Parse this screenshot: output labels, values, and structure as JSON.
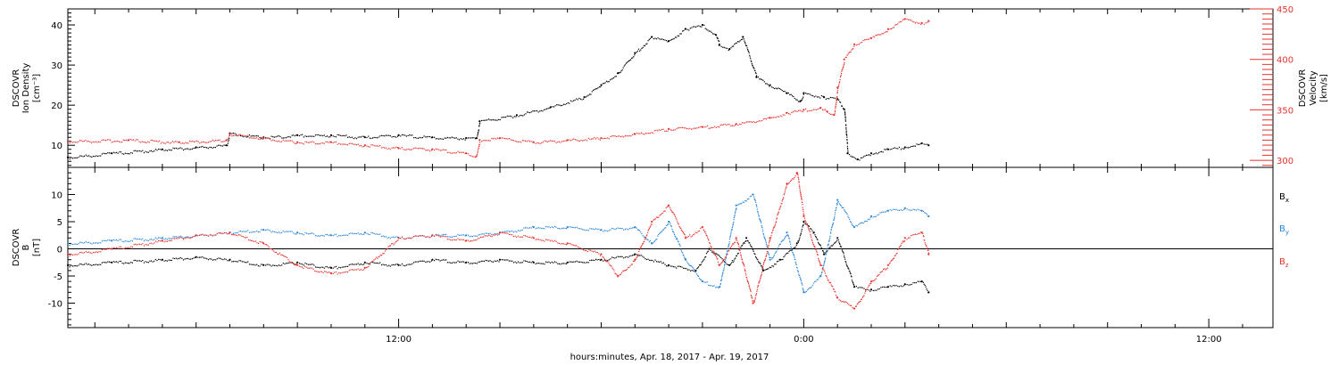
{
  "footer": {
    "xlabel": "hours:minutes, Apr. 18, 2017 - Apr. 19, 2017"
  },
  "chart_data": [
    {
      "type": "scatter",
      "panel": "top",
      "title": "",
      "xlabel": "hours:minutes, Apr. 18, 2017 - Apr. 19, 2017",
      "x_unit": "hours from 2017-04-18 00:00",
      "xlim": [
        2.2,
        37.9
      ],
      "x_ticks": [
        12,
        24,
        36
      ],
      "x_tick_labels": [
        "12:00",
        "0:00",
        "12:00"
      ],
      "y_left": {
        "label": [
          "DSCOVR",
          "Ion Density",
          "[cm⁻³]"
        ],
        "ylim": [
          4.5,
          44
        ],
        "ticks": [
          10,
          20,
          30,
          40
        ],
        "color": "#000000"
      },
      "y_right": {
        "label": [
          "DSCOVR",
          "Velocity",
          "[km/s]"
        ],
        "ylim": [
          293,
          450
        ],
        "ticks": [
          300,
          350,
          400,
          450
        ],
        "color": "#e8322d"
      },
      "series": [
        {
          "name": "Ion Density",
          "axis": "left",
          "color": "#000000",
          "x": [
            2.2,
            3.5,
            5.0,
            6.0,
            6.9,
            7.0,
            8.0,
            9.0,
            10.0,
            11.0,
            12.0,
            13.0,
            14.0,
            14.3,
            14.4,
            15.5,
            16.5,
            17.5,
            18.0,
            18.5,
            19.0,
            19.5,
            20.0,
            20.5,
            21.0,
            21.4,
            21.5,
            21.8,
            22.2,
            22.6,
            23.0,
            23.5,
            23.9,
            24.0,
            24.6,
            25.0,
            25.2,
            25.3,
            25.6,
            26.0,
            26.5,
            27.0,
            27.5,
            27.7
          ],
          "y": [
            7.0,
            8.0,
            9.0,
            9.5,
            10.0,
            13.0,
            12.0,
            12.5,
            12.5,
            12.0,
            12.5,
            12.0,
            11.8,
            11.8,
            16.0,
            17.5,
            19.5,
            22.0,
            25.0,
            28.0,
            33.0,
            37.0,
            36.0,
            39.0,
            40.0,
            37.5,
            35.0,
            34.0,
            37.0,
            27.0,
            25.0,
            23.0,
            21.0,
            23.0,
            22.0,
            21.5,
            19.0,
            8.0,
            6.5,
            8.0,
            9.0,
            9.5,
            10.5,
            10.0
          ]
        },
        {
          "name": "Velocity",
          "axis": "right",
          "color": "#e8322d",
          "x": [
            2.2,
            4.0,
            5.5,
            6.9,
            7.0,
            8.0,
            9.0,
            10.0,
            11.0,
            12.0,
            13.0,
            14.0,
            14.3,
            14.4,
            15.0,
            16.0,
            17.0,
            18.0,
            19.0,
            20.0,
            21.0,
            22.0,
            23.0,
            23.5,
            24.0,
            24.5,
            24.7,
            24.9,
            25.0,
            25.2,
            25.5,
            26.0,
            26.5,
            27.0,
            27.5,
            27.7
          ],
          "y": [
            319,
            320,
            318,
            320,
            326,
            322,
            318,
            318,
            315,
            312,
            311,
            307,
            304,
            320,
            322,
            318,
            320,
            322,
            326,
            331,
            333,
            336,
            342,
            347,
            350,
            352,
            348,
            345,
            372,
            400,
            415,
            421,
            430,
            440,
            436,
            438
          ]
        }
      ]
    },
    {
      "type": "scatter",
      "panel": "bottom",
      "title": "",
      "xlabel": "hours:minutes, Apr. 18, 2017 - Apr. 19, 2017",
      "x_unit": "hours from 2017-04-18 00:00",
      "xlim": [
        2.2,
        37.9
      ],
      "x_ticks": [
        12,
        24,
        36
      ],
      "x_tick_labels": [
        "12:00",
        "0:00",
        "12:00"
      ],
      "y_left": {
        "label": [
          "DSCOVR",
          "B",
          "[nT]"
        ],
        "ylim": [
          -14.5,
          15
        ],
        "ticks": [
          -10,
          -5,
          0,
          5,
          10
        ],
        "color": "#000000"
      },
      "zero_line": true,
      "legend": {
        "placement": "right",
        "entries": [
          {
            "name": "B",
            "sub": "x",
            "color": "#000000"
          },
          {
            "name": "B",
            "sub": "y",
            "color": "#2a86d8"
          },
          {
            "name": "B",
            "sub": "z",
            "color": "#e8322d"
          }
        ]
      },
      "series": [
        {
          "name": "Bx",
          "color": "#000000",
          "x": [
            2.2,
            3.5,
            5.0,
            6.0,
            7.0,
            8.0,
            9.0,
            10.0,
            11.0,
            12.0,
            13.0,
            14.0,
            15.0,
            16.0,
            17.0,
            18.0,
            19.0,
            20.0,
            20.8,
            21.2,
            21.8,
            22.3,
            22.8,
            23.3,
            23.8,
            24.0,
            24.3,
            24.6,
            25.0,
            25.5,
            26.0,
            26.5,
            27.0,
            27.5,
            27.7
          ],
          "y": [
            -3.0,
            -2.5,
            -2.0,
            -1.5,
            -2.0,
            -3.0,
            -2.5,
            -3.5,
            -2.5,
            -3.0,
            -2.0,
            -2.5,
            -2.0,
            -2.5,
            -2.5,
            -2.0,
            -1.0,
            -3.0,
            -4.0,
            0.0,
            -3.0,
            2.0,
            -4.0,
            -2.0,
            1.0,
            5.0,
            3.0,
            -1.0,
            2.0,
            -7.0,
            -7.5,
            -7.0,
            -6.5,
            -6.0,
            -8.0
          ]
        },
        {
          "name": "By",
          "color": "#2a86d8",
          "x": [
            2.2,
            3.5,
            5.0,
            6.0,
            7.0,
            8.0,
            9.0,
            10.0,
            11.0,
            12.0,
            13.0,
            14.0,
            15.0,
            16.0,
            17.0,
            18.0,
            19.0,
            19.5,
            20.0,
            20.5,
            21.0,
            21.5,
            22.0,
            22.5,
            23.0,
            23.5,
            24.0,
            24.5,
            25.0,
            25.5,
            26.0,
            26.5,
            27.0,
            27.5,
            27.7
          ],
          "y": [
            1.0,
            1.5,
            2.0,
            2.5,
            3.0,
            3.5,
            3.0,
            2.5,
            3.0,
            2.0,
            2.5,
            2.5,
            3.0,
            4.0,
            4.0,
            3.5,
            4.0,
            1.0,
            5.0,
            -2.0,
            -6.0,
            -7.0,
            8.0,
            10.0,
            -2.0,
            3.0,
            -8.0,
            -5.0,
            9.0,
            4.0,
            6.0,
            7.0,
            7.5,
            7.0,
            6.0
          ]
        },
        {
          "name": "Bz",
          "color": "#e8322d",
          "x": [
            2.2,
            3.5,
            5.0,
            6.0,
            7.0,
            8.0,
            9.0,
            10.0,
            11.0,
            12.0,
            13.0,
            14.0,
            15.0,
            16.0,
            17.0,
            18.0,
            18.5,
            19.0,
            19.5,
            20.0,
            20.5,
            21.0,
            21.5,
            22.0,
            22.5,
            23.0,
            23.5,
            23.8,
            24.0,
            24.5,
            25.0,
            25.5,
            26.0,
            26.5,
            27.0,
            27.5,
            27.7
          ],
          "y": [
            -1.0,
            0.0,
            1.5,
            2.5,
            3.0,
            1.0,
            -3.0,
            -4.5,
            -3.5,
            2.0,
            2.5,
            1.5,
            3.0,
            2.0,
            1.0,
            -1.0,
            -5.0,
            -2.0,
            5.0,
            8.0,
            2.0,
            4.0,
            -3.0,
            2.0,
            -10.0,
            2.0,
            12.0,
            14.0,
            6.0,
            -3.0,
            -9.0,
            -11.0,
            -6.0,
            -3.0,
            2.0,
            3.0,
            -1.0
          ]
        }
      ]
    }
  ]
}
